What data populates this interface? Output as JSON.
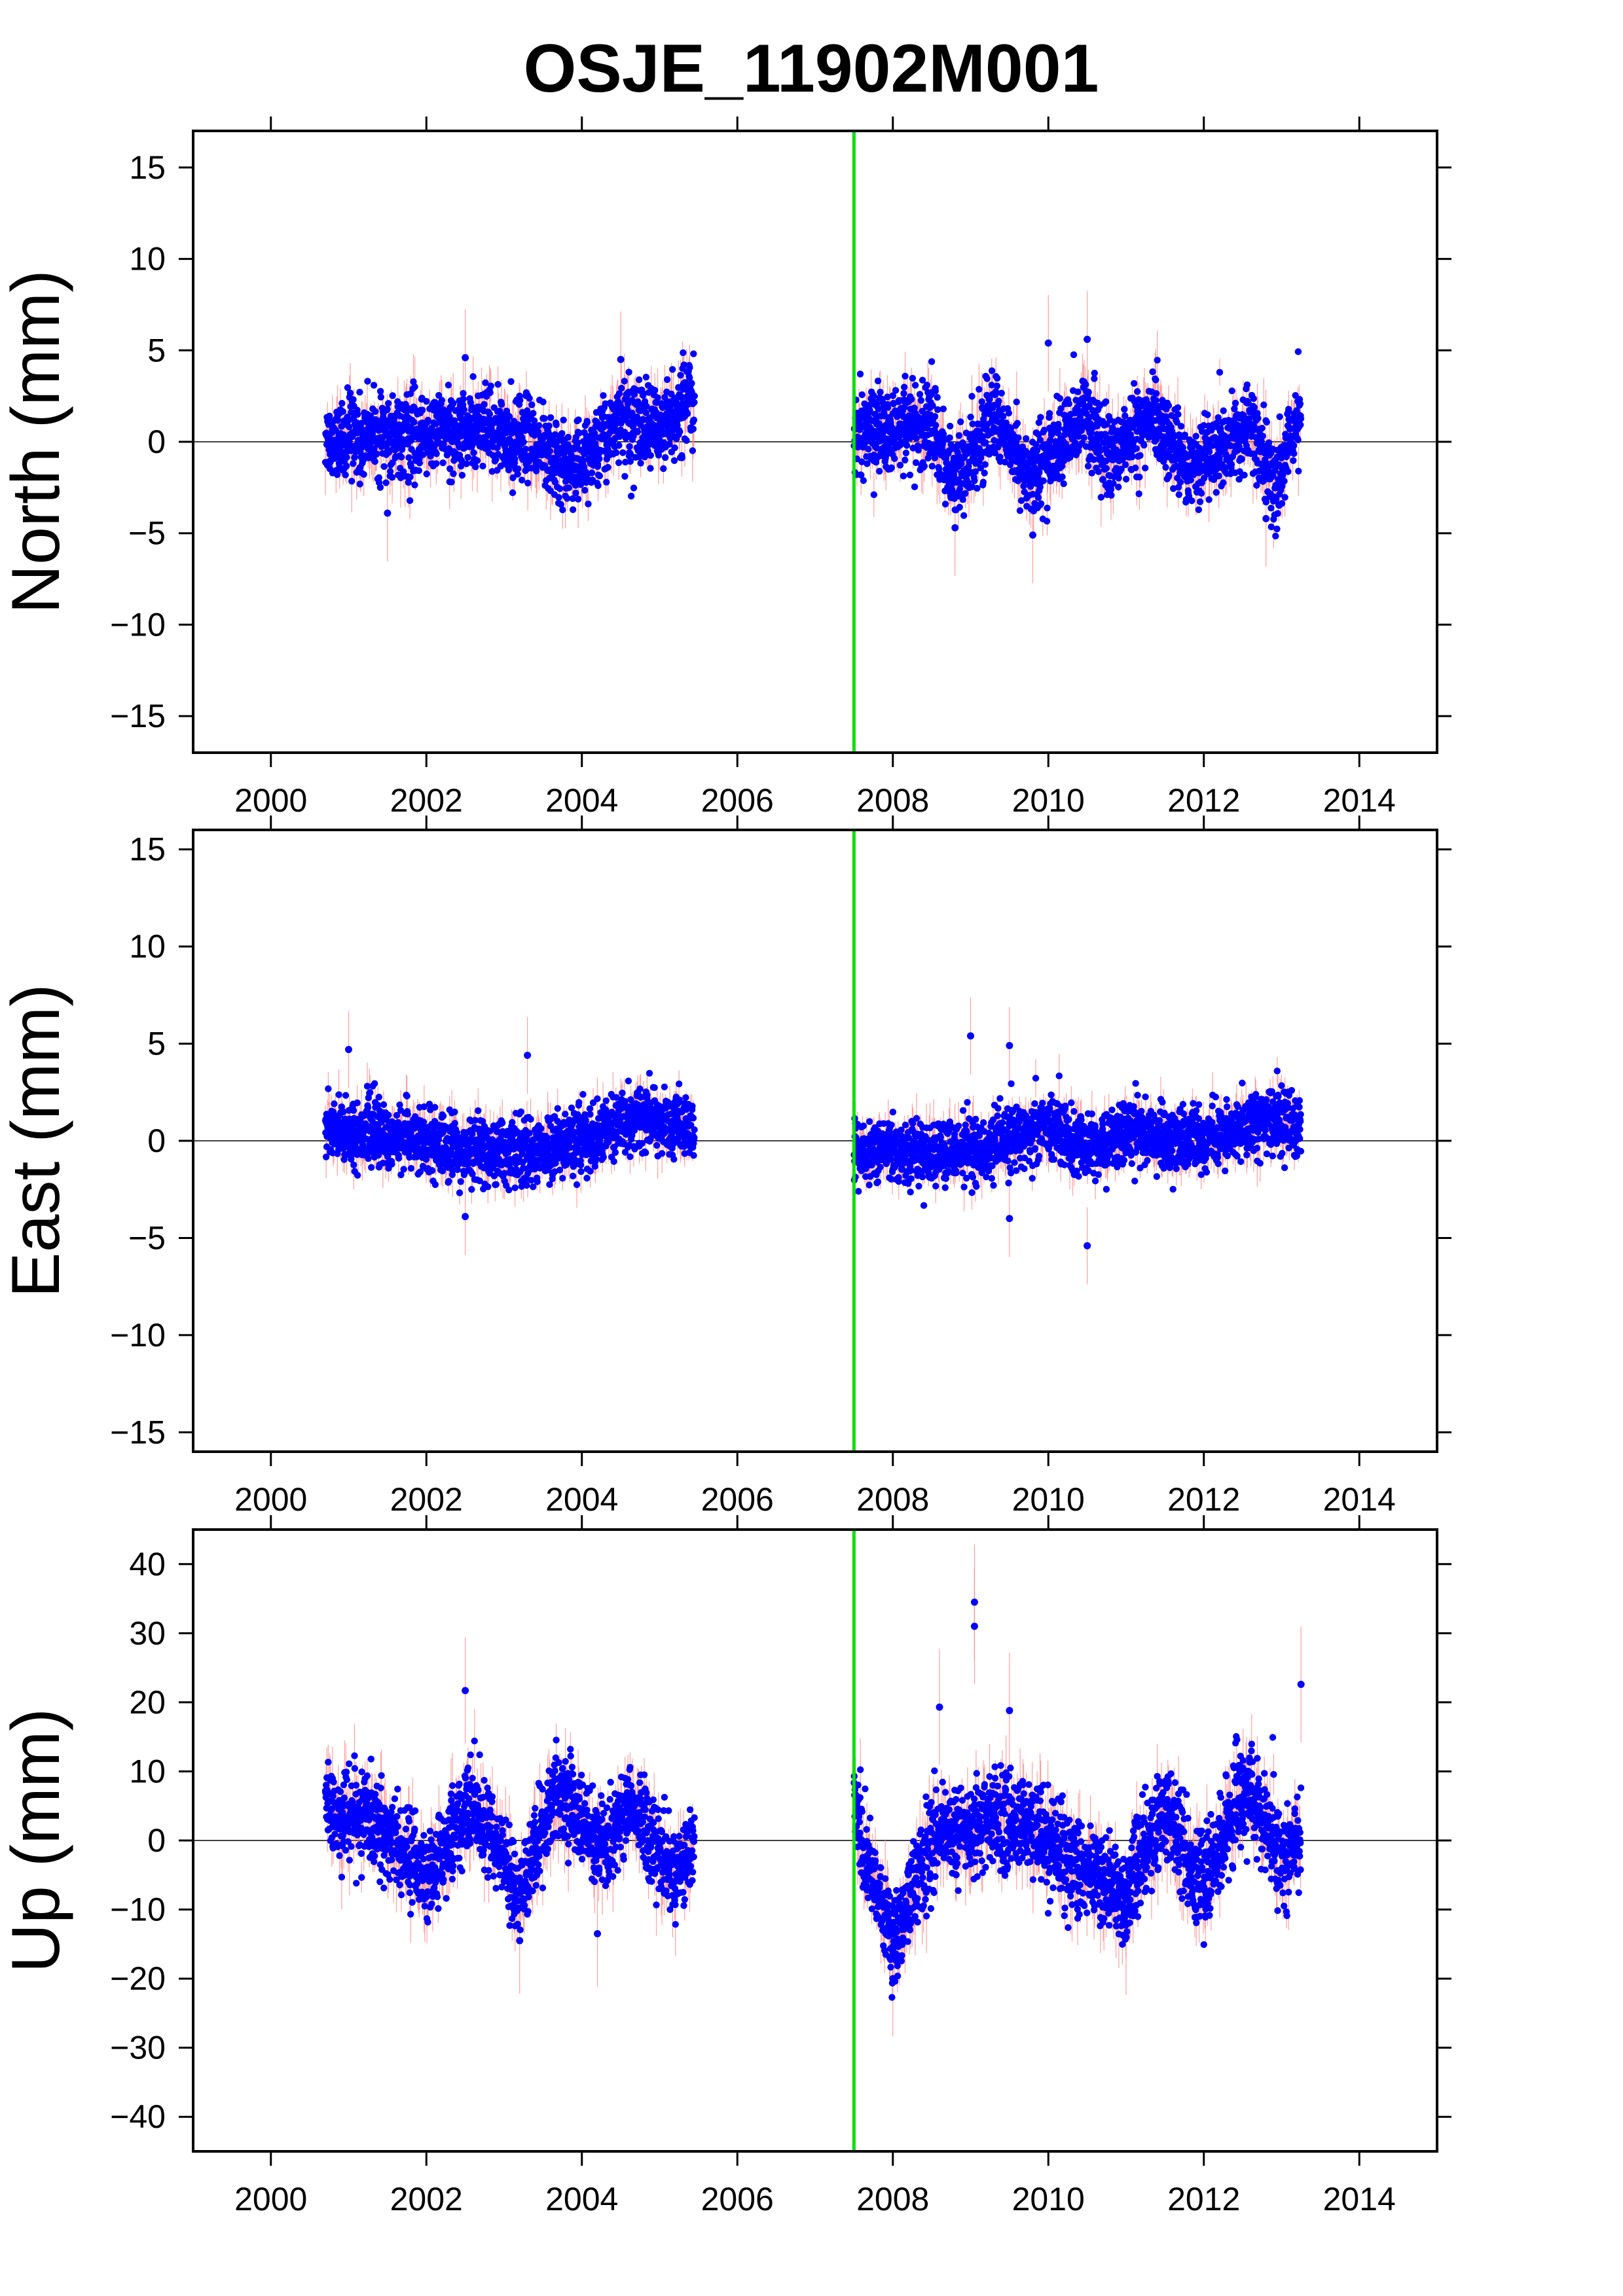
{
  "title": "OSJE_11902M001",
  "colors": {
    "points": "#0000ff",
    "errorbars": "#ff8080",
    "event_line": "#00e000",
    "zero_line": "#000000",
    "frame": "#000000"
  },
  "chart_data": [
    {
      "type": "scatter",
      "ylabel": "North (mm)",
      "xlim": [
        1999,
        2015
      ],
      "ylim": [
        -17,
        17
      ],
      "xticks": [
        2000,
        2002,
        2004,
        2006,
        2008,
        2010,
        2012,
        2014
      ],
      "yticks": [
        -15,
        -10,
        -5,
        0,
        5,
        10,
        15
      ],
      "ytick_labels": [
        "−15",
        "−10",
        "−5",
        "0",
        "5",
        "10",
        "15"
      ],
      "event_line_x": 2007.5,
      "zero_line": 0,
      "segments": [
        {
          "start": 2000.7,
          "end": 2005.45,
          "anchors": [
            [
              2000.7,
              0.0
            ],
            [
              2001.5,
              0.3
            ],
            [
              2002.5,
              0.6
            ],
            [
              2003.3,
              0.2
            ],
            [
              2003.9,
              -1.5
            ],
            [
              2004.5,
              1.2
            ],
            [
              2005.0,
              0.8
            ],
            [
              2005.45,
              2.5
            ]
          ],
          "noise": 1.2,
          "outliers": [
            [
              2002.5,
              4.6
            ],
            [
              2004.5,
              4.5
            ],
            [
              2001.5,
              -3.9
            ]
          ]
        },
        {
          "start": 2007.5,
          "end": 2013.25,
          "anchors": [
            [
              2007.5,
              0.5
            ],
            [
              2008.0,
              0.5
            ],
            [
              2008.5,
              1.0
            ],
            [
              2008.8,
              -2.0
            ],
            [
              2009.3,
              1.5
            ],
            [
              2009.8,
              -2.0
            ],
            [
              2010.2,
              0.0
            ],
            [
              2010.5,
              1.5
            ],
            [
              2010.8,
              -1.0
            ],
            [
              2011.3,
              1.5
            ],
            [
              2011.8,
              -1.5
            ],
            [
              2012.3,
              0.0
            ],
            [
              2012.6,
              1.0
            ],
            [
              2012.9,
              -2.5
            ],
            [
              2013.25,
              1.8
            ]
          ],
          "noise": 1.2,
          "outliers": [
            [
              2010.0,
              5.4
            ],
            [
              2010.5,
              5.6
            ],
            [
              2009.8,
              -5.1
            ],
            [
              2008.8,
              -4.7
            ],
            [
              2012.8,
              -4.2
            ]
          ]
        }
      ]
    },
    {
      "type": "scatter",
      "ylabel": "East (mm)",
      "xlim": [
        1999,
        2015
      ],
      "ylim": [
        -16,
        16
      ],
      "xticks": [
        2000,
        2002,
        2004,
        2006,
        2008,
        2010,
        2012,
        2014
      ],
      "yticks": [
        -15,
        -10,
        -5,
        0,
        5,
        10,
        15
      ],
      "ytick_labels": [
        "−15",
        "−10",
        "−5",
        "0",
        "5",
        "10",
        "15"
      ],
      "event_line_x": 2007.5,
      "zero_line": 0,
      "segments": [
        {
          "start": 2000.7,
          "end": 2005.45,
          "anchors": [
            [
              2000.7,
              0.6
            ],
            [
              2001.5,
              0.3
            ],
            [
              2002.5,
              -0.5
            ],
            [
              2003.3,
              -0.6
            ],
            [
              2004.0,
              0.0
            ],
            [
              2004.7,
              1.2
            ],
            [
              2005.45,
              0.4
            ]
          ],
          "noise": 0.9,
          "outliers": [
            [
              2001.0,
              4.7
            ],
            [
              2003.3,
              4.4
            ],
            [
              2002.5,
              -3.9
            ]
          ]
        },
        {
          "start": 2007.5,
          "end": 2013.25,
          "anchors": [
            [
              2007.5,
              -0.5
            ],
            [
              2008.5,
              -0.6
            ],
            [
              2009.3,
              -0.3
            ],
            [
              2010.0,
              0.8
            ],
            [
              2010.5,
              -0.5
            ],
            [
              2011.0,
              0.5
            ],
            [
              2011.5,
              0.0
            ],
            [
              2012.3,
              0.3
            ],
            [
              2012.8,
              1.2
            ],
            [
              2013.25,
              0.6
            ]
          ],
          "noise": 0.9,
          "outliers": [
            [
              2009.0,
              5.4
            ],
            [
              2009.5,
              4.9
            ],
            [
              2010.5,
              -5.4
            ],
            [
              2009.5,
              -4.0
            ]
          ]
        }
      ]
    },
    {
      "type": "scatter",
      "ylabel": "Up (mm)",
      "xlim": [
        1999,
        2015
      ],
      "ylim": [
        -45,
        45
      ],
      "xticks": [
        2000,
        2002,
        2004,
        2006,
        2008,
        2010,
        2012,
        2014
      ],
      "yticks": [
        -40,
        -30,
        -20,
        -10,
        0,
        10,
        20,
        30,
        40
      ],
      "ytick_labels": [
        "−40",
        "−30",
        "−20",
        "−10",
        "0",
        "10",
        "20",
        "30",
        "40"
      ],
      "event_line_x": 2007.5,
      "zero_line": 0,
      "segments": [
        {
          "start": 2000.7,
          "end": 2005.45,
          "anchors": [
            [
              2000.7,
              4.0
            ],
            [
              2001.3,
              3.0
            ],
            [
              2002.0,
              -5.0
            ],
            [
              2002.6,
              6.0
            ],
            [
              2003.2,
              -8.0
            ],
            [
              2003.7,
              8.0
            ],
            [
              2004.3,
              -2.0
            ],
            [
              2004.6,
              5.0
            ],
            [
              2005.2,
              -5.0
            ],
            [
              2005.45,
              0.0
            ]
          ],
          "noise": 3.5,
          "outliers": [
            [
              2002.5,
              21.7
            ],
            [
              2003.2,
              -14.5
            ],
            [
              2004.2,
              -13.5
            ]
          ]
        },
        {
          "start": 2007.5,
          "end": 2013.25,
          "anchors": [
            [
              2007.5,
              6.0
            ],
            [
              2007.7,
              -5.0
            ],
            [
              2008.0,
              -14.0
            ],
            [
              2008.5,
              0.0
            ],
            [
              2009.2,
              3.0
            ],
            [
              2009.8,
              2.0
            ],
            [
              2010.3,
              -3.0
            ],
            [
              2011.0,
              -8.0
            ],
            [
              2011.5,
              5.0
            ],
            [
              2012.0,
              -7.0
            ],
            [
              2012.5,
              8.0
            ],
            [
              2013.0,
              -2.0
            ],
            [
              2013.25,
              0.0
            ]
          ],
          "noise": 3.8,
          "outliers": [
            [
              2009.05,
              34.5
            ],
            [
              2009.05,
              31.0
            ],
            [
              2013.25,
              22.6
            ],
            [
              2008.6,
              19.3
            ],
            [
              2009.5,
              18.8
            ],
            [
              2008.0,
              -20.0
            ],
            [
              2011.0,
              -14.0
            ]
          ]
        }
      ]
    }
  ]
}
